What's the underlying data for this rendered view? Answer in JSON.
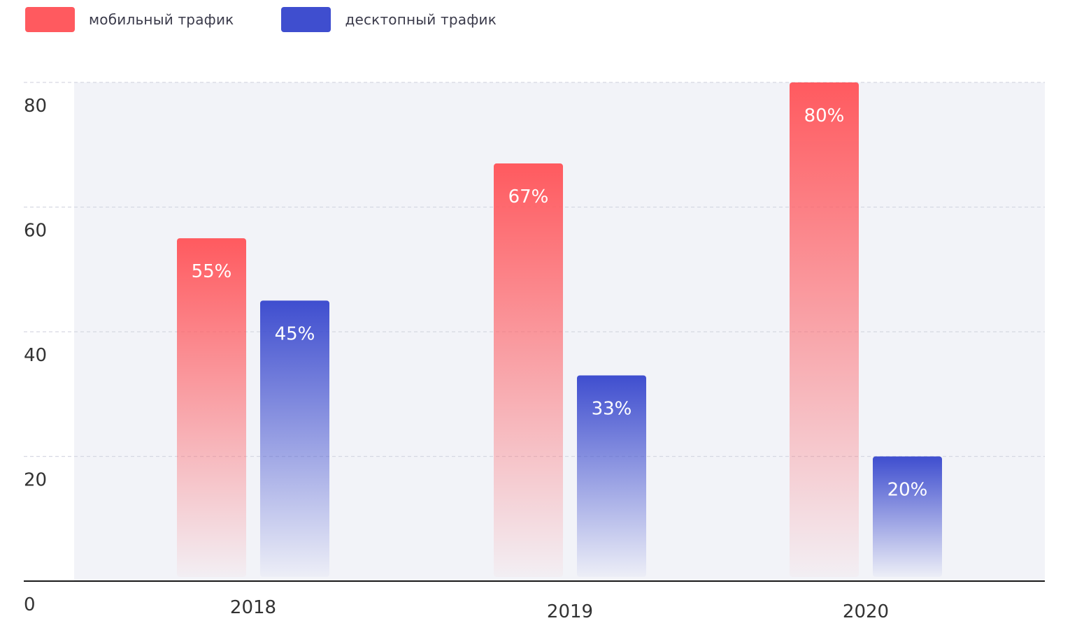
{
  "legend": {
    "mobile_label": "мобильный трафик",
    "desktop_label": "десктопный трафик"
  },
  "colors": {
    "mobile": "#ff5a5f",
    "desktop": "#3f4ecf",
    "plot_bg": "#f2f3f8",
    "grid": "#d6d8e2",
    "axis": "#1a1a1a",
    "tick_text": "#333333",
    "value_text": "#ffffff"
  },
  "chart_data": {
    "type": "bar",
    "categories": [
      "2018",
      "2019",
      "2020"
    ],
    "series": [
      {
        "name": "мобильный трафик",
        "values": [
          55,
          67,
          80
        ],
        "labels": [
          "55%",
          "67%",
          "80%"
        ]
      },
      {
        "name": "десктопный трафик",
        "values": [
          45,
          33,
          20
        ],
        "labels": [
          "45%",
          "33%",
          "20%"
        ]
      }
    ],
    "ylim": [
      0,
      80
    ],
    "yticks": [
      "0",
      "20",
      "40",
      "60",
      "80"
    ],
    "grid": true,
    "legend_position": "top-left",
    "title": "",
    "xlabel": "",
    "ylabel": ""
  }
}
